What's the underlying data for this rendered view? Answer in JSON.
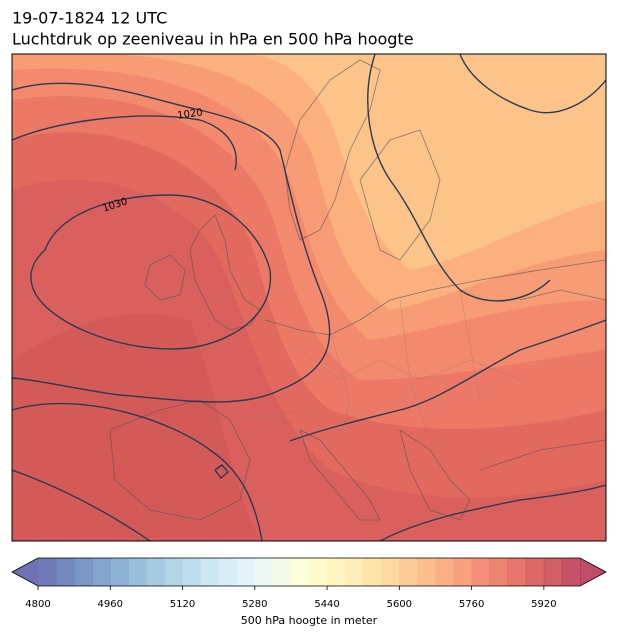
{
  "title": "19-07-1824 12 UTC",
  "subtitle": "Luchtdruk op zeeniveau in hPa en 500 hPa hoogte",
  "isobar_labels": [
    {
      "value": 1020
    },
    {
      "value": 1030
    }
  ],
  "colorbar": {
    "label": "500 hPa hoogte in meter",
    "range": [
      4800,
      6000
    ],
    "step": 40,
    "ticks": [
      4800,
      4960,
      5120,
      5280,
      5440,
      5600,
      5760,
      5920
    ]
  }
}
